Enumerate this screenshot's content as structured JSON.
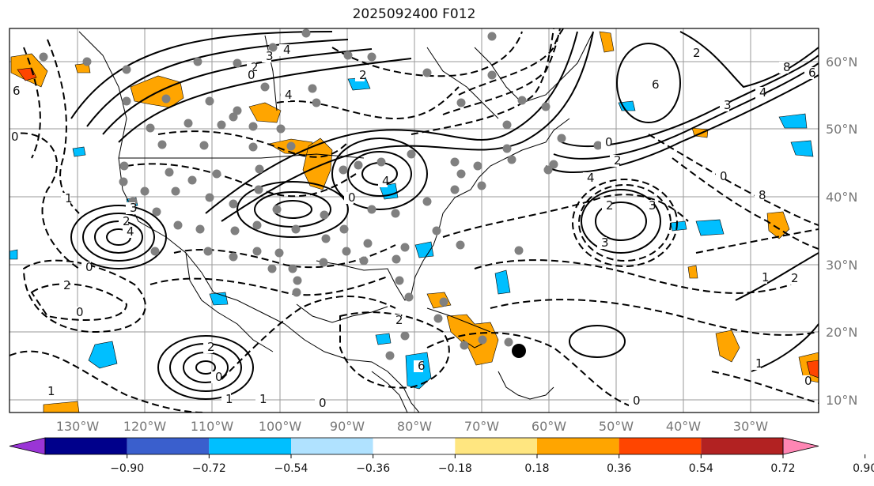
{
  "title": "2025092400 F012",
  "map": {
    "latitude_labels": [
      "60°N",
      "50°N",
      "40°N",
      "30°N",
      "20°N",
      "10°N"
    ],
    "longitude_labels": [
      "130°W",
      "120°W",
      "110°W",
      "100°W",
      "90°W",
      "80°W",
      "70°W",
      "60°W",
      "50°W",
      "40°W",
      "30°W"
    ],
    "contour_labels": [
      "4",
      "3",
      "2",
      "0",
      "2",
      "4",
      "3",
      "2",
      "6",
      "8",
      "6",
      "3",
      "4",
      "2",
      "0",
      "2",
      "4",
      "3",
      "2",
      "0",
      "4",
      "3",
      "4",
      "1",
      "0",
      "2",
      "0",
      "1",
      "0",
      "2",
      "0",
      "1",
      "1",
      "0",
      "6",
      "2",
      "0",
      "2",
      "1",
      "0",
      "1",
      "0",
      "8",
      "6"
    ],
    "marker_color": "#000000",
    "station_dot_color": "#808080"
  },
  "colorbar": {
    "tick_labels": [
      "−0.90",
      "−0.72",
      "−0.54",
      "−0.36",
      "−0.18",
      "0.18",
      "0.36",
      "0.54",
      "0.72",
      "0.90"
    ],
    "colors": [
      "#9a35d6",
      "#00008b",
      "#3a5fcd",
      "#00bfff",
      "#b0e2ff",
      "#ffffff",
      "#ffe680",
      "#ffa500",
      "#ff4500",
      "#b22222",
      "#ff86b4"
    ]
  }
}
